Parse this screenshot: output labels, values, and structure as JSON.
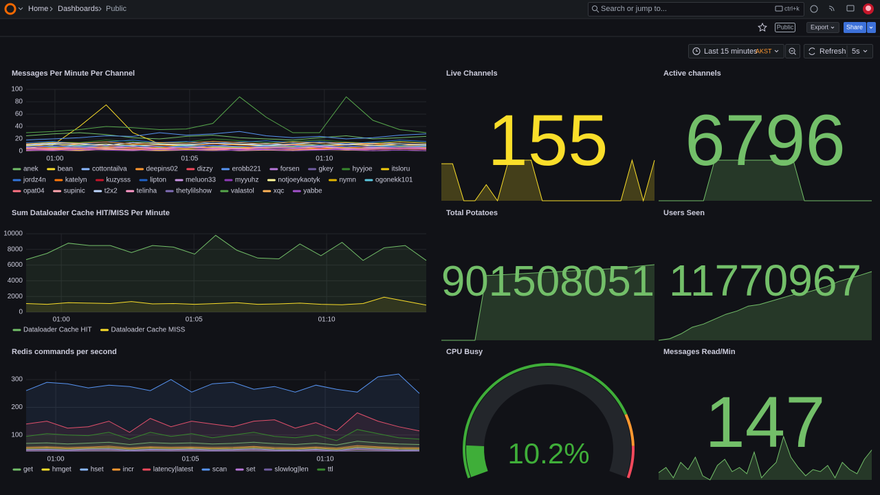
{
  "topbar": {
    "breadcrumb": [
      "Home",
      "Dashboards",
      "Public"
    ],
    "search_placeholder": "Search or jump to...",
    "shortcut": "ctrl+k"
  },
  "toolbar": {
    "badge": "Public",
    "export": "Export",
    "share": "Share",
    "time_range": "Last 15 minutes",
    "timezone": "AKST",
    "refresh": "Refresh",
    "interval": "5s"
  },
  "panels": [
    {
      "type": "timeseries",
      "title": "Messages Per Minute Per Channel",
      "xlim": [
        0,
        15
      ],
      "xticks": [
        {
          "value": 1.08,
          "label": "01:00"
        },
        {
          "value": 6.13,
          "label": "01:05"
        },
        {
          "value": 11.18,
          "label": "01:10"
        }
      ],
      "ylim": [
        0,
        100
      ],
      "yticks": [
        0,
        20,
        40,
        60,
        80,
        100
      ],
      "fill": false,
      "series": [
        {
          "name": "anek",
          "color": "#73bf69",
          "values": [
            25,
            28,
            30,
            27,
            22,
            20,
            24,
            26,
            22,
            20,
            18,
            22,
            25,
            20,
            22,
            24
          ]
        },
        {
          "name": "bean",
          "color": "#fade2a",
          "values": [
            5,
            10,
            40,
            75,
            30,
            12,
            8,
            6,
            5,
            6,
            8,
            7,
            6,
            5,
            8,
            6
          ]
        },
        {
          "name": "cottontailva",
          "color": "#8ab8ff",
          "values": [
            10,
            12,
            8,
            10,
            14,
            12,
            10,
            9,
            11,
            13,
            10,
            8,
            12,
            10,
            9,
            11
          ]
        },
        {
          "name": "deepins02",
          "color": "#ff9830",
          "values": [
            6,
            4,
            8,
            5,
            7,
            6,
            9,
            5,
            6,
            8,
            7,
            5,
            6,
            9,
            12,
            8
          ]
        },
        {
          "name": "dizzy",
          "color": "#f2495c",
          "values": [
            3,
            5,
            4,
            6,
            3,
            5,
            4,
            7,
            5,
            4,
            6,
            3,
            5,
            4,
            6,
            5
          ]
        },
        {
          "name": "erobb221",
          "color": "#5794f2",
          "values": [
            18,
            20,
            22,
            25,
            24,
            30,
            26,
            28,
            32,
            25,
            22,
            24,
            20,
            22,
            26,
            28
          ]
        },
        {
          "name": "forsen",
          "color": "#b877d9",
          "values": [
            8,
            6,
            9,
            7,
            10,
            8,
            6,
            9,
            7,
            8,
            10,
            7,
            9,
            6,
            8,
            7
          ]
        },
        {
          "name": "gkey",
          "color": "#705da0",
          "values": [
            4,
            3,
            5,
            4,
            6,
            3,
            5,
            4,
            3,
            5,
            4,
            6,
            3,
            4,
            5,
            4
          ]
        },
        {
          "name": "hyyjoe",
          "color": "#37872d",
          "values": [
            12,
            15,
            14,
            18,
            16,
            13,
            15,
            20,
            17,
            14,
            16,
            18,
            15,
            13,
            16,
            14
          ]
        },
        {
          "name": "itsloru",
          "color": "#f2cc0c",
          "values": [
            2,
            3,
            2,
            4,
            3,
            2,
            3,
            2,
            4,
            3,
            2,
            3,
            2,
            3,
            4,
            3
          ]
        },
        {
          "name": "jordz4n",
          "color": "#3274d9",
          "values": [
            14,
            16,
            12,
            15,
            18,
            14,
            16,
            13,
            15,
            17,
            14,
            16,
            12,
            15,
            18,
            16
          ]
        },
        {
          "name": "katelyn",
          "color": "#ff780a",
          "values": [
            10,
            8,
            12,
            9,
            11,
            10,
            8,
            12,
            10,
            9,
            11,
            8,
            10,
            12,
            9,
            10
          ]
        },
        {
          "name": "kuzysss",
          "color": "#c4162a",
          "values": [
            5,
            7,
            6,
            8,
            5,
            7,
            6,
            5,
            8,
            6,
            7,
            5,
            6,
            8,
            7,
            6
          ]
        },
        {
          "name": "lipton",
          "color": "#1f60c4",
          "values": [
            7,
            9,
            8,
            6,
            9,
            7,
            8,
            10,
            7,
            9,
            8,
            6,
            9,
            7,
            8,
            9
          ]
        },
        {
          "name": "meluon33",
          "color": "#ca95e5",
          "values": [
            6,
            5,
            7,
            6,
            8,
            5,
            7,
            6,
            5,
            7,
            6,
            8,
            5,
            6,
            7,
            6
          ]
        },
        {
          "name": "myyuhz",
          "color": "#8f3bb8",
          "values": [
            3,
            4,
            3,
            5,
            4,
            3,
            5,
            4,
            3,
            4,
            5,
            3,
            4,
            3,
            5,
            4
          ]
        },
        {
          "name": "notjoeykaotyk",
          "color": "#fff899",
          "values": [
            9,
            11,
            10,
            12,
            9,
            11,
            10,
            13,
            11,
            9,
            12,
            10,
            11,
            9,
            12,
            10
          ]
        },
        {
          "name": "nymn",
          "color": "#e0b400",
          "values": [
            4,
            6,
            5,
            7,
            5,
            6,
            4,
            7,
            6,
            5,
            7,
            4,
            6,
            5,
            7,
            6
          ]
        },
        {
          "name": "ogonekk101",
          "color": "#5cc8e0",
          "values": [
            8,
            7,
            9,
            8,
            10,
            7,
            9,
            8,
            7,
            9,
            8,
            10,
            7,
            8,
            9,
            8
          ]
        },
        {
          "name": "opat04",
          "color": "#ff7383",
          "values": [
            2,
            3,
            4,
            2,
            3,
            4,
            2,
            3,
            4,
            2,
            3,
            4,
            2,
            3,
            4,
            3
          ]
        },
        {
          "name": "supinic",
          "color": "#ffa6b0",
          "values": [
            1,
            2,
            1,
            3,
            2,
            1,
            2,
            3,
            1,
            2,
            1,
            3,
            2,
            1,
            2,
            1
          ]
        },
        {
          "name": "t2x2",
          "color": "#c0d8ff",
          "values": [
            11,
            13,
            12,
            10,
            14,
            12,
            11,
            13,
            12,
            10,
            12,
            14,
            11,
            13,
            12,
            11
          ]
        },
        {
          "name": "telinha",
          "color": "#ff99c9",
          "values": [
            5,
            4,
            6,
            5,
            7,
            4,
            6,
            5,
            4,
            6,
            5,
            7,
            4,
            5,
            6,
            5
          ]
        },
        {
          "name": "thetylilshow",
          "color": "#806eb7",
          "values": [
            7,
            8,
            6,
            9,
            7,
            8,
            6,
            9,
            8,
            7,
            6,
            9,
            7,
            8,
            6,
            7
          ]
        },
        {
          "name": "valastol",
          "color": "#56a64b",
          "values": [
            30,
            32,
            35,
            40,
            38,
            35,
            36,
            45,
            88,
            55,
            30,
            30,
            88,
            50,
            35,
            30
          ]
        },
        {
          "name": "xqc",
          "color": "#ffb357",
          "values": [
            12,
            14,
            13,
            15,
            12,
            14,
            13,
            16,
            14,
            12,
            15,
            13,
            14,
            12,
            15,
            13
          ]
        },
        {
          "name": "yabbe",
          "color": "#a352cc",
          "values": [
            2,
            1,
            3,
            2,
            1,
            3,
            2,
            1,
            2,
            3,
            1,
            2,
            3,
            1,
            2,
            1
          ]
        }
      ]
    },
    {
      "type": "stat",
      "title": "Live Channels",
      "value": 155,
      "color": "#fade2a",
      "sparkline": [
        150,
        150,
        97,
        97,
        120,
        97,
        155,
        155,
        155,
        97,
        97,
        97,
        97,
        97,
        97,
        97,
        97,
        155,
        97,
        155
      ]
    },
    {
      "type": "stat",
      "title": "Active channels",
      "value": 6796,
      "color": "#73bf69",
      "sparkline": [
        6700,
        6700,
        6700,
        6700,
        6700,
        6796,
        6796,
        6796,
        6796,
        6796,
        6796,
        6796,
        6796,
        6700,
        6700,
        6700,
        6700,
        6700,
        6700,
        6700
      ]
    },
    {
      "type": "timeseries",
      "title": "Sum Dataloader Cache HIT/MISS Per Minute",
      "xlim": [
        0,
        19
      ],
      "xticks": [
        {
          "value": 1.67,
          "label": "01:00"
        },
        {
          "value": 7.97,
          "label": "01:05"
        },
        {
          "value": 14.27,
          "label": "01:10"
        }
      ],
      "ylim": [
        0,
        10000
      ],
      "yticks": [
        0,
        2000,
        4000,
        6000,
        8000,
        10000
      ],
      "fill": true,
      "series": [
        {
          "name": "Dataloader Cache HIT",
          "color": "#73bf69",
          "values": [
            6700,
            7500,
            8800,
            8500,
            8500,
            7600,
            8500,
            8300,
            7400,
            9800,
            7900,
            6900,
            6800,
            8700,
            7200,
            8900,
            6600,
            8200,
            8500,
            6600
          ]
        },
        {
          "name": "Dataloader Cache MISS",
          "color": "#fade2a",
          "values": [
            1100,
            1000,
            1200,
            1150,
            1100,
            1350,
            1050,
            1100,
            1000,
            1100,
            1200,
            1000,
            1050,
            1150,
            1000,
            950,
            1100,
            1900,
            1400,
            900
          ]
        }
      ]
    },
    {
      "type": "stat",
      "title": "Total Potatoes",
      "value": 901508051,
      "color": "#73bf69",
      "sparkline": [
        900900000,
        900900000,
        900900000,
        900900000,
        901420000,
        901425000,
        901430000,
        901435000,
        901440000,
        901445000,
        901450000,
        901455000,
        901460000,
        901465000,
        901470000,
        901475000,
        901480000,
        901490000,
        901500000,
        901508051
      ]
    },
    {
      "type": "stat",
      "title": "Users Seen",
      "value": 11770967,
      "color": "#73bf69",
      "sparkline": [
        11560000,
        11565000,
        11580000,
        11600000,
        11610000,
        11625000,
        11640000,
        11650000,
        11665000,
        11670000,
        11680000,
        11690000,
        11700000,
        11705000,
        11715000,
        11725000,
        11740000,
        11750000,
        11760000,
        11770967
      ]
    },
    {
      "type": "timeseries",
      "title": "Redis commands per second",
      "xlim": [
        0,
        19
      ],
      "xticks": [
        {
          "value": 1.43,
          "label": "01:00"
        },
        {
          "value": 7.94,
          "label": "01:05"
        },
        {
          "value": 14.45,
          "label": "01:10"
        }
      ],
      "ylim": [
        40,
        330
      ],
      "yticks": [
        100,
        200,
        300
      ],
      "fill": true,
      "series": [
        {
          "name": "get",
          "color": "#73bf69",
          "values": [
            70,
            72,
            68,
            71,
            74,
            66,
            73,
            70,
            72,
            68,
            70,
            74,
            69,
            66,
            71,
            64,
            78,
            72,
            68,
            66
          ]
        },
        {
          "name": "hmget",
          "color": "#fade2a",
          "values": [
            52,
            54,
            51,
            53,
            55,
            50,
            54,
            52,
            53,
            51,
            52,
            55,
            51,
            50,
            53,
            49,
            57,
            54,
            51,
            50
          ]
        },
        {
          "name": "hset",
          "color": "#8ab8ff",
          "values": [
            48,
            49,
            47,
            50,
            51,
            46,
            49,
            48,
            50,
            47,
            48,
            51,
            47,
            46,
            49,
            45,
            53,
            50,
            47,
            46
          ]
        },
        {
          "name": "incr",
          "color": "#ff9830",
          "values": [
            56,
            58,
            55,
            57,
            60,
            54,
            58,
            56,
            57,
            55,
            56,
            59,
            55,
            54,
            57,
            53,
            62,
            58,
            55,
            54
          ]
        },
        {
          "name": "latency|latest",
          "color": "#f2495c",
          "values": [
            140,
            150,
            125,
            130,
            150,
            110,
            160,
            130,
            150,
            140,
            130,
            150,
            155,
            125,
            145,
            115,
            180,
            150,
            130,
            115
          ]
        },
        {
          "name": "scan",
          "color": "#5794f2",
          "values": [
            260,
            290,
            285,
            270,
            280,
            275,
            260,
            300,
            255,
            285,
            290,
            265,
            275,
            255,
            280,
            265,
            255,
            310,
            320,
            250
          ]
        },
        {
          "name": "set",
          "color": "#b877d9",
          "values": [
            45,
            46,
            44,
            46,
            47,
            43,
            46,
            45,
            46,
            44,
            45,
            47,
            44,
            43,
            46,
            42,
            49,
            46,
            44,
            43
          ]
        },
        {
          "name": "slowlog|len",
          "color": "#705da0",
          "values": [
            42,
            42,
            42,
            42,
            42,
            42,
            42,
            42,
            42,
            42,
            42,
            42,
            42,
            42,
            42,
            42,
            42,
            42,
            42,
            42
          ]
        },
        {
          "name": "ttl",
          "color": "#37872d",
          "values": [
            95,
            105,
            100,
            98,
            110,
            85,
            110,
            95,
            105,
            90,
            100,
            110,
            95,
            90,
            100,
            80,
            120,
            105,
            90,
            85
          ]
        }
      ]
    },
    {
      "type": "gauge",
      "title": "CPU Busy",
      "value": 10.2,
      "value_label": "10.2%",
      "lim": [
        0,
        100
      ],
      "color": "#3fae39",
      "thresholds": [
        {
          "value": 80,
          "color": "#ff9830"
        },
        {
          "value": 90,
          "color": "#f2495c"
        }
      ]
    },
    {
      "type": "stat",
      "title": "Messages Read/Min",
      "value": 147,
      "color": "#73bf69",
      "sparkline": [
        125,
        130,
        120,
        135,
        128,
        140,
        122,
        118,
        132,
        138,
        126,
        130,
        124,
        145,
        120,
        128,
        135,
        160,
        140,
        130,
        122,
        128,
        126,
        132,
        120,
        135,
        128,
        124,
        138,
        147
      ]
    }
  ]
}
